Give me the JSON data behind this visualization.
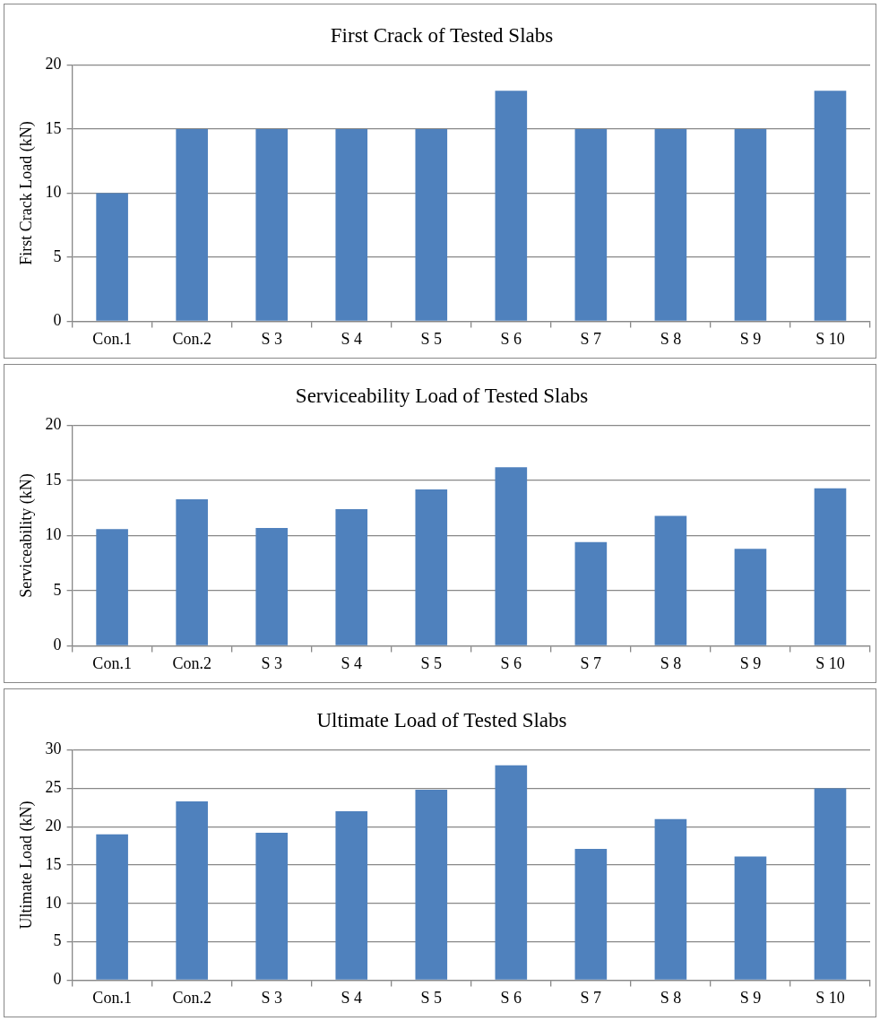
{
  "chart_data": [
    {
      "type": "bar",
      "title": "First Crack of Tested Slabs",
      "ylabel": "First Crack Load (kN)",
      "categories": [
        "Con.1",
        "Con.2",
        "S 3",
        "S 4",
        "S 5",
        "S 6",
        "S 7",
        "S 8",
        "S 9",
        "S 10"
      ],
      "values": [
        10,
        15,
        15,
        15,
        15,
        18,
        15,
        15,
        15,
        18
      ],
      "color": "#4f81bd",
      "ylim": [
        0,
        20
      ],
      "yticks": [
        0,
        5,
        10,
        15,
        20
      ],
      "grid": "y",
      "legend": false
    },
    {
      "type": "bar",
      "title": "Serviceability Load of Tested Slabs",
      "ylabel": "Serviceability (kN)",
      "categories": [
        "Con.1",
        "Con.2",
        "S 3",
        "S 4",
        "S 5",
        "S 6",
        "S 7",
        "S 8",
        "S 9",
        "S 10"
      ],
      "values": [
        10.6,
        13.3,
        10.7,
        12.4,
        14.2,
        16.2,
        9.4,
        11.8,
        8.8,
        14.3
      ],
      "color": "#4f81bd",
      "ylim": [
        0,
        20
      ],
      "yticks": [
        0,
        5,
        10,
        15,
        20
      ],
      "grid": "y",
      "legend": false
    },
    {
      "type": "bar",
      "title": "Ultimate Load of Tested Slabs",
      "ylabel": "Ultimate Load (kN)",
      "categories": [
        "Con.1",
        "Con.2",
        "S 3",
        "S 4",
        "S 5",
        "S 6",
        "S 7",
        "S 8",
        "S 9",
        "S 10"
      ],
      "values": [
        19,
        23.3,
        19.2,
        22,
        24.8,
        28,
        17.1,
        21,
        16.1,
        25
      ],
      "color": "#4f81bd",
      "ylim": [
        0,
        30
      ],
      "yticks": [
        0,
        5,
        10,
        15,
        20,
        25,
        30
      ],
      "grid": "y",
      "legend": false
    }
  ]
}
